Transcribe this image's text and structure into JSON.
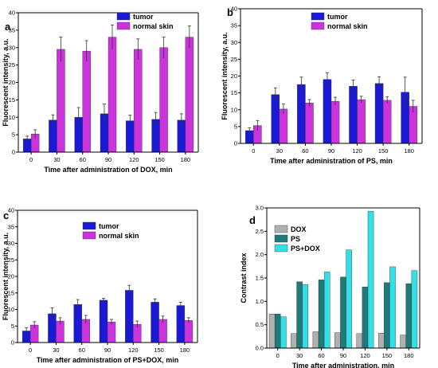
{
  "chart_data": [
    {
      "panel": "a",
      "type": "bar",
      "xlabel": "Time after administration of DOX, min",
      "ylabel": "Fluorescent intensity, a.u.",
      "categories": [
        "0",
        "30",
        "60",
        "90",
        "120",
        "150",
        "180"
      ],
      "ylim": [
        0,
        40
      ],
      "yticks": [
        0,
        5,
        10,
        15,
        20,
        25,
        30,
        35,
        40
      ],
      "series": [
        {
          "name": "tumor",
          "color": "#1a1ad6",
          "values": [
            3.8,
            9.2,
            10.0,
            11.0,
            9.0,
            9.4,
            9.2
          ],
          "errors": [
            0.8,
            1.5,
            2.8,
            2.8,
            1.6,
            2.0,
            1.8
          ]
        },
        {
          "name": "normal skin",
          "color": "#cc33dd",
          "values": [
            5.2,
            29.5,
            29.0,
            33.0,
            29.5,
            30.0,
            33.0
          ],
          "errors": [
            1.2,
            3.5,
            3.0,
            3.5,
            3.0,
            3.0,
            3.2
          ]
        }
      ],
      "legend": "top-right"
    },
    {
      "panel": "b",
      "type": "bar",
      "xlabel": "Time after administration of PS, min",
      "ylabel": "Fluorescent intensity, a.u.",
      "categories": [
        "0",
        "30",
        "60",
        "90",
        "120",
        "150",
        "180"
      ],
      "ylim": [
        0,
        40
      ],
      "yticks": [
        0,
        5,
        10,
        15,
        20,
        25,
        30,
        35,
        40
      ],
      "series": [
        {
          "name": "tumor",
          "color": "#1a1ad6",
          "values": [
            3.8,
            14.5,
            17.5,
            19.0,
            17.0,
            17.8,
            15.2
          ],
          "errors": [
            0.8,
            2.0,
            2.2,
            2.0,
            1.8,
            2.0,
            4.5
          ]
        },
        {
          "name": "normal skin",
          "color": "#cc33dd",
          "values": [
            5.3,
            10.2,
            12.0,
            12.5,
            13.0,
            12.8,
            11.0
          ],
          "errors": [
            1.5,
            1.5,
            1.0,
            1.2,
            1.0,
            1.0,
            1.8
          ]
        }
      ],
      "legend": "top-right"
    },
    {
      "panel": "c",
      "type": "bar",
      "xlabel": "Time after administration of PS+DOX, min",
      "ylabel": "Fluorescent intensity, a.u.",
      "categories": [
        "0",
        "30",
        "60",
        "90",
        "120",
        "150",
        "180"
      ],
      "ylim": [
        0,
        40
      ],
      "yticks": [
        0,
        5,
        10,
        15,
        20,
        25,
        30,
        35,
        40
      ],
      "series": [
        {
          "name": "tumor",
          "color": "#1a1ad6",
          "values": [
            3.5,
            8.7,
            11.5,
            12.8,
            15.8,
            12.2,
            11.2
          ],
          "errors": [
            1.0,
            1.8,
            1.5,
            0.6,
            1.5,
            1.0,
            1.0
          ]
        },
        {
          "name": "normal skin",
          "color": "#cc33dd",
          "values": [
            5.3,
            6.5,
            7.0,
            6.2,
            5.5,
            7.0,
            6.7
          ],
          "errors": [
            1.0,
            1.0,
            1.2,
            0.8,
            1.0,
            1.0,
            0.8
          ]
        }
      ],
      "legend": "top-right"
    },
    {
      "panel": "d",
      "type": "bar",
      "xlabel": "Time after administration, min",
      "ylabel": "Contrast index",
      "categories": [
        "0",
        "30",
        "60",
        "90",
        "120",
        "150",
        "180"
      ],
      "ylim": [
        0,
        3.0
      ],
      "yticks": [
        0.0,
        0.5,
        1.0,
        1.5,
        2.0,
        2.5,
        3.0
      ],
      "series": [
        {
          "name": "DOX",
          "color": "#b0b0b0",
          "values": [
            0.73,
            0.31,
            0.35,
            0.33,
            0.31,
            0.32,
            0.28
          ]
        },
        {
          "name": "PS",
          "color": "#1f7a7a",
          "values": [
            0.73,
            1.42,
            1.46,
            1.52,
            1.31,
            1.4,
            1.38
          ]
        },
        {
          "name": "PS+DOX",
          "color": "#33e0e8",
          "values": [
            0.67,
            1.36,
            1.63,
            2.1,
            2.93,
            1.74,
            1.66
          ]
        }
      ],
      "legend": "top-left"
    }
  ]
}
